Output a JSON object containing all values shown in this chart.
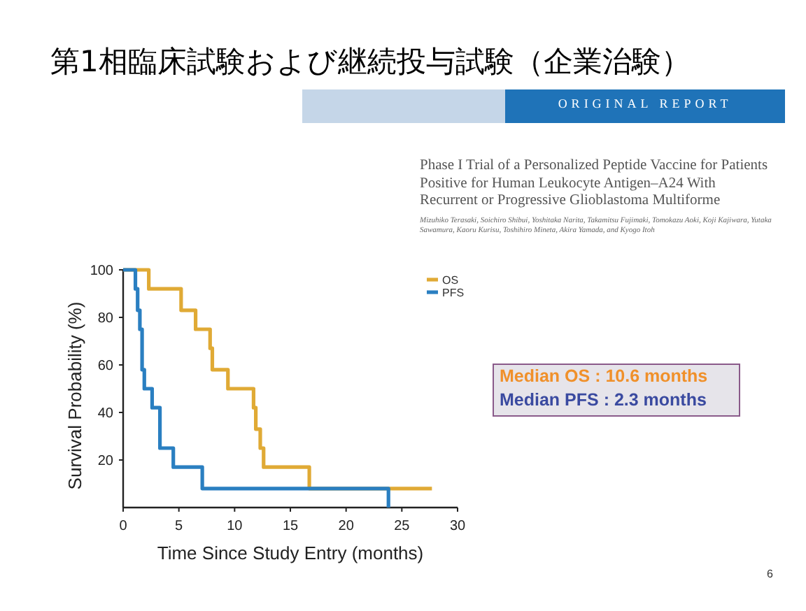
{
  "chart_data": {
    "type": "step",
    "title": "第1相臨床試験および継続投与試験（企業治験）",
    "xlabel": "Time Since Study Entry (months)",
    "ylabel": "Survival Probability (%)",
    "series": [
      {
        "name": "OS",
        "color": "#e0aa35",
        "x": [
          0,
          2.3,
          5.2,
          6.5,
          7.8,
          8.0,
          9.4,
          11.7,
          11.9,
          12.3,
          12.6,
          16.7,
          27.7
        ],
        "values": [
          100,
          92,
          83,
          75,
          67,
          58,
          50,
          42,
          33,
          25,
          17,
          8,
          8
        ]
      },
      {
        "name": "PFS",
        "color": "#2a7fc1",
        "x": [
          0,
          1.1,
          1.3,
          1.5,
          1.7,
          1.9,
          2.6,
          3.3,
          4.5,
          7.1,
          23.8,
          23.8
        ],
        "values": [
          100,
          92,
          83,
          75,
          58,
          50,
          42,
          25,
          17,
          8,
          8,
          0
        ]
      }
    ],
    "xlim": [
      0,
      30
    ],
    "xticks": [
      0,
      5,
      10,
      15,
      20,
      25,
      30
    ],
    "ylim": [
      0,
      100
    ],
    "yticks": [
      20,
      40,
      60,
      80,
      100
    ],
    "legend": "top right",
    "grid": false,
    "annotations": [
      "ORIGINAL REPORT",
      "Phase I Trial of a Personalized Peptide Vaccine for Patients Positive for Human Leukocyte Antigen–A24 With Recurrent or Progressive Glioblastoma Multiforme",
      "Mizuhiko Terasaki, Soichiro Shibui, Yoshitaka Narita, Takamitsu Fujimaki, Tomokazu Aoki, Koji Kajiwara, Yutaka Sawamura, Kaoru Kurisu, Toshihiro Mineta, Akira Yamada, and Kyogo Itoh",
      "Median OS : 10.6 months",
      "Median PFS : 2.3 months",
      "6"
    ]
  }
}
